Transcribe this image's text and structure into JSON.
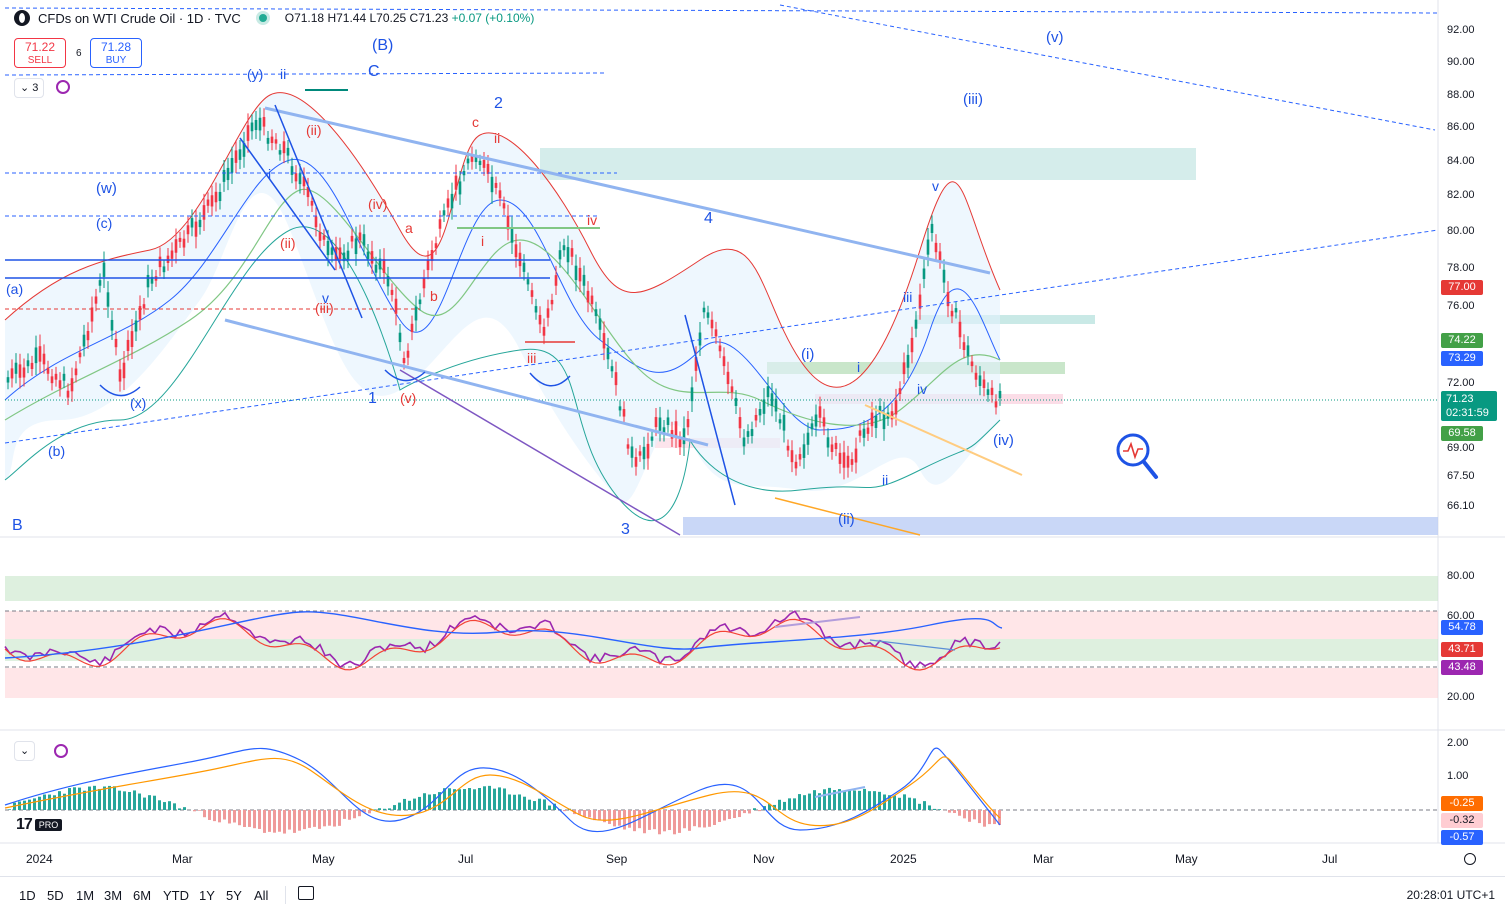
{
  "legend": {
    "title": "CFDs on WTI Crude Oil · 1D · TVC",
    "open": "O71.18",
    "high": "H71.44",
    "low": "L70.25",
    "close": "C71.23",
    "change": "+0.07 (+0.10%)"
  },
  "trade": {
    "sell_price": "71.22",
    "sell_label": "SELL",
    "buy_price": "71.28",
    "buy_label": "BUY",
    "spread": "6"
  },
  "indicator_toggle": {
    "count": "3"
  },
  "price_axis": [
    "92.00",
    "90.00",
    "88.00",
    "86.00",
    "84.00",
    "82.00",
    "80.00",
    "78.00",
    "76.00",
    "72.00",
    "69.00",
    "67.50",
    "66.10"
  ],
  "price_badges": {
    "level_red": "77.00",
    "level_green": "74.22",
    "level_blue": "73.29",
    "last_price": "71.23",
    "countdown": "02:31:59",
    "level_green_low": "69.58"
  },
  "rsi_axis": [
    "80.00",
    "60.00",
    "20.00"
  ],
  "rsi_badges": {
    "ma": "54.78",
    "rsi_red": "43.71",
    "rsi_purple": "43.48"
  },
  "macd_axis": [
    "2.00",
    "1.00"
  ],
  "macd_badges": {
    "signal": "-0.25",
    "hist": "-0.32",
    "macd": "-0.57"
  },
  "date_axis": [
    "2024",
    "Mar",
    "May",
    "Jul",
    "Sep",
    "Nov",
    "2025",
    "Mar",
    "May",
    "Jul"
  ],
  "timeframes": [
    "1D",
    "5D",
    "1M",
    "3M",
    "6M",
    "YTD",
    "1Y",
    "5Y",
    "All"
  ],
  "clock": "20:28:01 UTC+1",
  "logo_text": {
    "mark": "17",
    "pro": "PRO"
  },
  "wave_labels": {
    "B_paren": "(B)",
    "y_paren": "(y)",
    "ii_top": "ii",
    "C": "C",
    "two": "2",
    "c_small": "c",
    "ii_red": "ii",
    "w_paren": "(w)",
    "c_paren": "(c)",
    "a_paren": "(a)",
    "b_paren": "(b)",
    "x_paren": "(x)",
    "i_blue": "i",
    "ii_paren_red": "(ii)",
    "iii_paren_red": "(iii)",
    "iv_paren_red": "(iv)",
    "v_blue": "v",
    "v_paren_red": "(v)",
    "ii_red2": "(ii)",
    "a_red": "a",
    "b_red": "b",
    "one": "1",
    "i_red": "i",
    "iii_red": "iii",
    "iv_red": "iv",
    "four": "4",
    "three": "3",
    "B_cap": "B",
    "i_paren": "(i)",
    "i_small": "i",
    "ii_small": "ii",
    "ii_paren": "(ii)",
    "iii_small": "iii",
    "iv_small": "iv",
    "v_small": "v",
    "iii_paren": "(iii)",
    "v_paren": "(v)",
    "iv_paren": "(iv)"
  }
}
